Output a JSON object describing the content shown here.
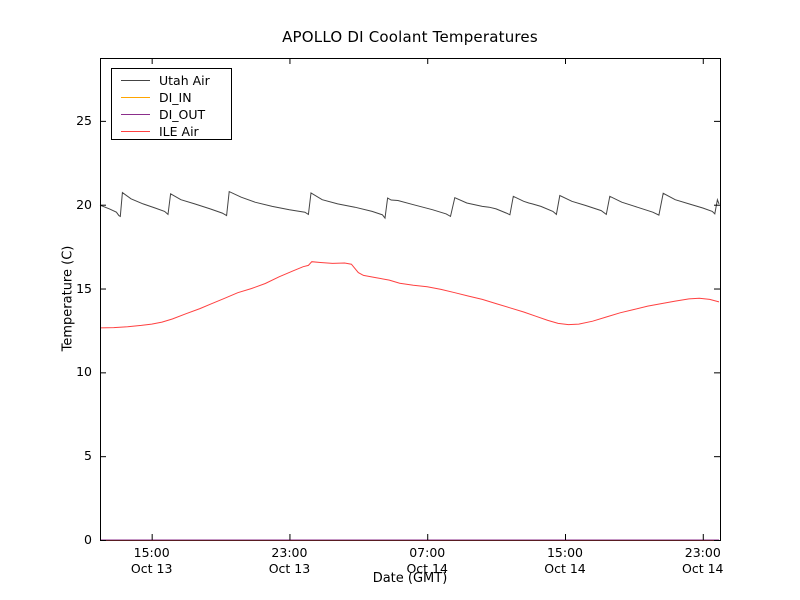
{
  "figure": {
    "title": "APOLLO DI Coolant Temperatures",
    "xlabel": "Date (GMT)",
    "ylabel": "Temperature (C)"
  },
  "chart_data": {
    "type": "line",
    "title": "APOLLO DI Coolant Temperatures",
    "xlabel": "Date (GMT)",
    "ylabel": "Temperature (C)",
    "x_unit": "hours after Oct 13 12:00 GMT",
    "xlim": [
      0,
      36
    ],
    "ylim": [
      0,
      28.75
    ],
    "grid": false,
    "legend_position": "upper-left",
    "yticks": [
      {
        "v": 0,
        "label": "0"
      },
      {
        "v": 5,
        "label": "5"
      },
      {
        "v": 10,
        "label": "10"
      },
      {
        "v": 15,
        "label": "15"
      },
      {
        "v": 20,
        "label": "20"
      },
      {
        "v": 25,
        "label": "25"
      }
    ],
    "xticks": [
      {
        "t": 3,
        "time": "15:00",
        "date": "Oct 13"
      },
      {
        "t": 11,
        "time": "23:00",
        "date": "Oct 13"
      },
      {
        "t": 19,
        "time": "07:00",
        "date": "Oct 14"
      },
      {
        "t": 27,
        "time": "15:00",
        "date": "Oct 14"
      },
      {
        "t": 35,
        "time": "23:00",
        "date": "Oct 14"
      }
    ],
    "series": [
      {
        "name": "Utah Air",
        "color": "#444444",
        "points": [
          [
            0,
            19.97
          ],
          [
            0.55,
            19.75
          ],
          [
            0.95,
            19.55
          ],
          [
            1.1,
            19.35
          ],
          [
            1.18,
            19.3
          ],
          [
            1.3,
            20.72
          ],
          [
            1.8,
            20.35
          ],
          [
            2.5,
            20.05
          ],
          [
            3.2,
            19.8
          ],
          [
            3.75,
            19.6
          ],
          [
            3.95,
            19.42
          ],
          [
            4.1,
            20.65
          ],
          [
            4.7,
            20.3
          ],
          [
            5.5,
            20.05
          ],
          [
            6.4,
            19.75
          ],
          [
            7.1,
            19.5
          ],
          [
            7.35,
            19.35
          ],
          [
            7.5,
            20.78
          ],
          [
            8.2,
            20.45
          ],
          [
            9.0,
            20.15
          ],
          [
            10.0,
            19.9
          ],
          [
            11.0,
            19.7
          ],
          [
            11.9,
            19.55
          ],
          [
            12.1,
            19.42
          ],
          [
            12.25,
            20.7
          ],
          [
            12.9,
            20.3
          ],
          [
            13.8,
            20.05
          ],
          [
            14.8,
            19.85
          ],
          [
            15.8,
            19.6
          ],
          [
            16.4,
            19.4
          ],
          [
            16.55,
            19.2
          ],
          [
            16.7,
            20.4
          ],
          [
            16.9,
            20.28
          ],
          [
            17.3,
            20.25
          ],
          [
            18.2,
            20.0
          ],
          [
            19.3,
            19.7
          ],
          [
            20.1,
            19.45
          ],
          [
            20.35,
            19.3
          ],
          [
            20.6,
            20.42
          ],
          [
            21.3,
            20.1
          ],
          [
            22.2,
            19.9
          ],
          [
            22.6,
            19.85
          ],
          [
            23.0,
            19.75
          ],
          [
            23.6,
            19.5
          ],
          [
            23.8,
            19.4
          ],
          [
            24.0,
            20.5
          ],
          [
            24.6,
            20.2
          ],
          [
            24.9,
            20.1
          ],
          [
            25.1,
            20.05
          ],
          [
            25.6,
            19.9
          ],
          [
            26.3,
            19.6
          ],
          [
            26.5,
            19.42
          ],
          [
            26.7,
            20.55
          ],
          [
            27.4,
            20.2
          ],
          [
            28.2,
            19.95
          ],
          [
            29.1,
            19.65
          ],
          [
            29.4,
            19.42
          ],
          [
            29.6,
            20.5
          ],
          [
            30.3,
            20.15
          ],
          [
            31.2,
            19.85
          ],
          [
            32.1,
            19.55
          ],
          [
            32.45,
            19.38
          ],
          [
            32.7,
            20.68
          ],
          [
            33.4,
            20.3
          ],
          [
            34.2,
            20.05
          ],
          [
            35.0,
            19.8
          ],
          [
            35.55,
            19.6
          ],
          [
            35.7,
            19.45
          ],
          [
            35.85,
            20.3
          ],
          [
            35.94,
            20.05
          ]
        ]
      },
      {
        "name": "DI_IN",
        "color": "#ffa500",
        "points": [
          [
            0,
            0
          ],
          [
            35.94,
            0
          ]
        ]
      },
      {
        "name": "DI_OUT",
        "color": "#8b2e8b",
        "points": [
          [
            0,
            0
          ],
          [
            35.94,
            0
          ]
        ]
      },
      {
        "name": "ILE Air",
        "color": "#ff4040",
        "points": [
          [
            0,
            12.65
          ],
          [
            0.8,
            12.67
          ],
          [
            1.6,
            12.72
          ],
          [
            2.4,
            12.8
          ],
          [
            3.0,
            12.88
          ],
          [
            3.6,
            13.0
          ],
          [
            4.2,
            13.18
          ],
          [
            5.0,
            13.5
          ],
          [
            5.8,
            13.8
          ],
          [
            6.5,
            14.1
          ],
          [
            7.2,
            14.4
          ],
          [
            8.0,
            14.75
          ],
          [
            8.8,
            15.0
          ],
          [
            9.6,
            15.3
          ],
          [
            10.4,
            15.7
          ],
          [
            11.2,
            16.05
          ],
          [
            11.8,
            16.3
          ],
          [
            12.1,
            16.38
          ],
          [
            12.3,
            16.6
          ],
          [
            12.8,
            16.55
          ],
          [
            13.5,
            16.5
          ],
          [
            14.2,
            16.52
          ],
          [
            14.6,
            16.45
          ],
          [
            15.0,
            15.95
          ],
          [
            15.3,
            15.78
          ],
          [
            16.0,
            15.65
          ],
          [
            16.8,
            15.5
          ],
          [
            17.4,
            15.32
          ],
          [
            18.2,
            15.2
          ],
          [
            19.0,
            15.1
          ],
          [
            19.8,
            14.95
          ],
          [
            20.6,
            14.75
          ],
          [
            21.4,
            14.55
          ],
          [
            22.2,
            14.35
          ],
          [
            23.0,
            14.1
          ],
          [
            23.8,
            13.85
          ],
          [
            24.6,
            13.6
          ],
          [
            25.3,
            13.35
          ],
          [
            26.0,
            13.1
          ],
          [
            26.6,
            12.92
          ],
          [
            27.2,
            12.85
          ],
          [
            27.8,
            12.88
          ],
          [
            28.6,
            13.05
          ],
          [
            29.4,
            13.3
          ],
          [
            30.2,
            13.55
          ],
          [
            31.0,
            13.75
          ],
          [
            31.8,
            13.95
          ],
          [
            32.6,
            14.1
          ],
          [
            33.4,
            14.25
          ],
          [
            34.2,
            14.38
          ],
          [
            34.8,
            14.42
          ],
          [
            35.4,
            14.35
          ],
          [
            35.94,
            14.2
          ]
        ]
      }
    ]
  }
}
